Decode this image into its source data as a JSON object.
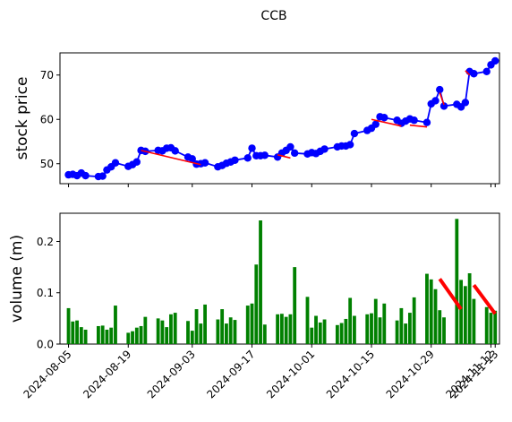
{
  "figure": {
    "title": "CCB"
  },
  "chart_data": [
    {
      "type": "line",
      "title": "CCB",
      "ylabel": "stock price",
      "ylabel_color": "#0000ff",
      "series_color": "#0000ff",
      "trend_color": "#ff0000",
      "ylim": [
        45.5,
        75
      ],
      "yticks": [
        50,
        60,
        70
      ],
      "xlim": [
        "2024-08-03",
        "2024-11-14"
      ],
      "xticks": [
        "2024-08-05",
        "2024-08-19",
        "2024-09-03",
        "2024-09-17",
        "2024-10-01",
        "2024-10-15",
        "2024-10-29",
        "2024-11-12",
        "2024-11-13"
      ],
      "x": [
        "2024-08-05",
        "2024-08-06",
        "2024-08-07",
        "2024-08-08",
        "2024-08-09",
        "2024-08-12",
        "2024-08-13",
        "2024-08-14",
        "2024-08-15",
        "2024-08-16",
        "2024-08-19",
        "2024-08-20",
        "2024-08-21",
        "2024-08-22",
        "2024-08-23",
        "2024-08-26",
        "2024-08-27",
        "2024-08-28",
        "2024-08-29",
        "2024-08-30",
        "2024-09-02",
        "2024-09-03",
        "2024-09-04",
        "2024-09-05",
        "2024-09-06",
        "2024-09-09",
        "2024-09-10",
        "2024-09-11",
        "2024-09-12",
        "2024-09-13",
        "2024-09-16",
        "2024-09-17",
        "2024-09-18",
        "2024-09-19",
        "2024-09-20",
        "2024-09-23",
        "2024-09-24",
        "2024-09-25",
        "2024-09-26",
        "2024-09-27",
        "2024-09-30",
        "2024-10-01",
        "2024-10-02",
        "2024-10-03",
        "2024-10-04",
        "2024-10-07",
        "2024-10-08",
        "2024-10-09",
        "2024-10-10",
        "2024-10-11",
        "2024-10-14",
        "2024-10-15",
        "2024-10-16",
        "2024-10-17",
        "2024-10-18",
        "2024-10-21",
        "2024-10-22",
        "2024-10-23",
        "2024-10-24",
        "2024-10-25",
        "2024-10-28",
        "2024-10-29",
        "2024-10-30",
        "2024-10-31",
        "2024-11-01",
        "2024-11-04",
        "2024-11-05",
        "2024-11-06",
        "2024-11-07",
        "2024-11-08",
        "2024-11-11",
        "2024-11-12",
        "2024-11-13"
      ],
      "values": [
        47.5,
        47.6,
        47.3,
        47.9,
        47.3,
        47.1,
        47.2,
        48.6,
        49.3,
        50.2,
        49.4,
        49.8,
        50.4,
        53.0,
        52.8,
        53.0,
        52.9,
        53.5,
        53.6,
        52.9,
        51.5,
        51.1,
        49.9,
        50.0,
        50.2,
        49.3,
        49.6,
        50.1,
        50.4,
        50.8,
        51.3,
        53.5,
        51.8,
        51.8,
        51.9,
        51.5,
        52.4,
        53.0,
        53.8,
        52.4,
        52.2,
        52.5,
        52.3,
        52.8,
        53.3,
        53.8,
        54.0,
        54.0,
        54.3,
        56.8,
        57.5,
        58.0,
        58.9,
        60.6,
        60.4,
        59.8,
        59.1,
        59.6,
        60.1,
        59.8,
        59.3,
        63.5,
        64.2,
        66.7,
        63.0,
        63.4,
        62.8,
        63.8,
        70.8,
        70.3,
        70.8,
        72.3,
        73.2
      ],
      "trend_segments": [
        {
          "x": [
            "2024-08-22",
            "2024-09-05"
          ],
          "y": [
            53.0,
            49.8
          ]
        },
        {
          "x": [
            "2024-09-23",
            "2024-09-26"
          ],
          "y": [
            52.0,
            51.3
          ]
        },
        {
          "x": [
            "2024-10-15",
            "2024-10-22"
          ],
          "y": [
            60.0,
            58.5
          ]
        },
        {
          "x": [
            "2024-10-24",
            "2024-10-28"
          ],
          "y": [
            58.7,
            58.3
          ]
        },
        {
          "x": [
            "2024-10-31",
            "2024-11-01"
          ],
          "y": [
            66.0,
            63.3
          ]
        },
        {
          "x": [
            "2024-11-06",
            "2024-11-07"
          ],
          "y": [
            71.0,
            70.0
          ]
        }
      ]
    },
    {
      "type": "bar",
      "ylabel": "volume (m)",
      "ylabel_color": "#008000",
      "bar_color": "#008000",
      "trend_color": "#ff0000",
      "ylim": [
        0,
        0.255
      ],
      "yticks": [
        "0.0",
        "0.1",
        "0.2"
      ],
      "ytick_values": [
        0.0,
        0.1,
        0.2
      ],
      "xticks": [
        "2024-08-05",
        "2024-08-19",
        "2024-09-03",
        "2024-09-17",
        "2024-10-01",
        "2024-10-15",
        "2024-10-29",
        "2024-11-12",
        "2024-11-13"
      ],
      "values": [
        0.07,
        0.044,
        0.046,
        0.033,
        0.028,
        0.035,
        0.036,
        0.028,
        0.032,
        0.075,
        0.022,
        0.025,
        0.032,
        0.035,
        0.053,
        0.05,
        0.046,
        0.033,
        0.058,
        0.061,
        0.045,
        0.026,
        0.068,
        0.04,
        0.077,
        0.048,
        0.068,
        0.04,
        0.052,
        0.047,
        0.075,
        0.079,
        0.155,
        0.241,
        0.038,
        0.058,
        0.059,
        0.053,
        0.058,
        0.15,
        0.092,
        0.032,
        0.055,
        0.042,
        0.048,
        0.037,
        0.041,
        0.049,
        0.09,
        0.055,
        0.058,
        0.06,
        0.088,
        0.052,
        0.079,
        0.046,
        0.07,
        0.04,
        0.061,
        0.091,
        0.137,
        0.126,
        0.107,
        0.066,
        0.052,
        0.244,
        0.125,
        0.113,
        0.138,
        0.088,
        0.072,
        0.061,
        0.065
      ],
      "trend_segments": [
        {
          "x": [
            "2024-10-31",
            "2024-11-05"
          ],
          "y": [
            0.127,
            0.068
          ]
        },
        {
          "x": [
            "2024-11-08",
            "2024-11-13"
          ],
          "y": [
            0.115,
            0.059
          ]
        }
      ]
    }
  ]
}
